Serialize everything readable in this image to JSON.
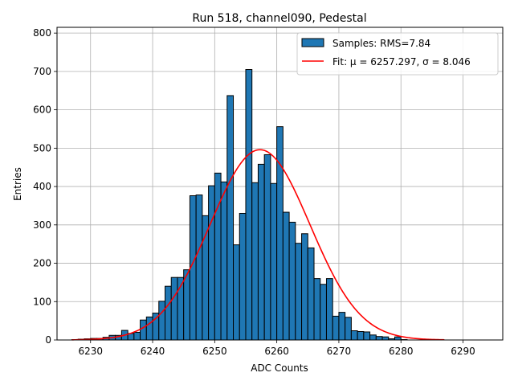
{
  "chart_data": {
    "type": "histogram",
    "title": "Run 518, channel090, Pedestal",
    "xlabel": "ADC Counts",
    "ylabel": "Entries",
    "xlim": [
      6224.6,
      6296.4
    ],
    "ylim": [
      0,
      815
    ],
    "xticks": [
      6230,
      6240,
      6250,
      6260,
      6270,
      6280,
      6290
    ],
    "yticks": [
      0,
      100,
      200,
      300,
      400,
      500,
      600,
      700,
      800
    ],
    "grid": true,
    "bins": {
      "start": 6227,
      "width": 1,
      "counts": [
        1,
        2,
        3,
        4,
        4,
        7,
        12,
        12,
        25,
        17,
        20,
        52,
        60,
        70,
        101,
        140,
        163,
        163,
        183,
        376,
        378,
        324,
        402,
        435,
        412,
        637,
        248,
        330,
        705,
        410,
        458,
        483,
        408,
        556,
        333,
        307,
        252,
        277,
        240,
        160,
        145,
        160,
        62,
        72,
        59,
        24,
        22,
        21,
        13,
        9,
        8,
        3,
        8,
        1
      ]
    },
    "fit": {
      "type": "gaussian",
      "mu": 6257.297,
      "sigma": 8.046,
      "amplitude": 496,
      "x_range": [
        6227,
        6287
      ]
    },
    "colors": {
      "bars": "#1f77b4",
      "bar_edge": "#000000",
      "fit_line": "#ff0000",
      "grid": "#b0b0b0"
    },
    "legend": {
      "position": "top-right",
      "entries": [
        {
          "label": "Samples: RMS=7.84",
          "kind": "patch",
          "color": "#1f77b4"
        },
        {
          "label": "Fit: μ = 6257.297, σ = 8.046",
          "kind": "line",
          "color": "#ff0000"
        }
      ]
    }
  }
}
